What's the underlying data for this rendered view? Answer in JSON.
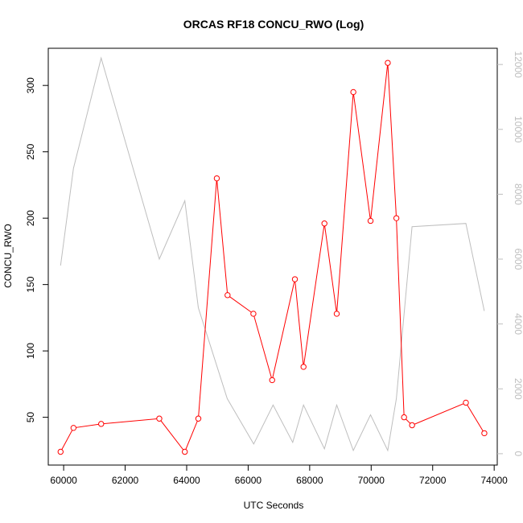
{
  "chart_data": {
    "type": "line",
    "title": "ORCAS RF18 CONCU_RWO (Log)",
    "xlabel": "UTC Seconds",
    "ylabel": "CONCU_RWO",
    "xlim": [
      59500,
      74100
    ],
    "ylim": [
      14,
      328
    ],
    "y2lim": [
      -350,
      12500
    ],
    "x_ticks": [
      60000,
      62000,
      64000,
      66000,
      68000,
      70000,
      72000,
      74000
    ],
    "y_ticks": [
      50,
      100,
      150,
      200,
      250,
      300
    ],
    "y2_ticks": [
      0,
      2000,
      4000,
      6000,
      8000,
      10000,
      12000
    ],
    "colors": {
      "primary": "#ff0000",
      "secondary": "#bebebe",
      "axis": "#000000"
    },
    "series": [
      {
        "axis": "left",
        "style": "line+points",
        "x": [
          59900,
          60320,
          61220,
          63110,
          63940,
          64380,
          64980,
          65330,
          66170,
          66780,
          67520,
          67800,
          68480,
          68880,
          69420,
          69980,
          70540,
          70820,
          71070,
          71330,
          73080,
          73680
        ],
        "y": [
          24,
          42,
          45,
          49,
          24,
          49,
          230,
          142,
          128,
          78,
          154,
          88,
          196,
          128,
          295,
          198,
          317,
          200,
          50,
          44,
          61,
          38
        ]
      },
      {
        "axis": "right",
        "style": "line",
        "x": [
          59900,
          60320,
          61220,
          63110,
          63940,
          64380,
          65320,
          66180,
          66810,
          67450,
          67800,
          68480,
          68880,
          69420,
          69980,
          70540,
          70820,
          71330,
          73080,
          73680
        ],
        "y": [
          5800,
          8800,
          12200,
          6000,
          7800,
          4500,
          1700,
          300,
          1500,
          350,
          1500,
          150,
          1500,
          100,
          1200,
          100,
          1700,
          7000,
          7100,
          4400
        ]
      }
    ]
  }
}
